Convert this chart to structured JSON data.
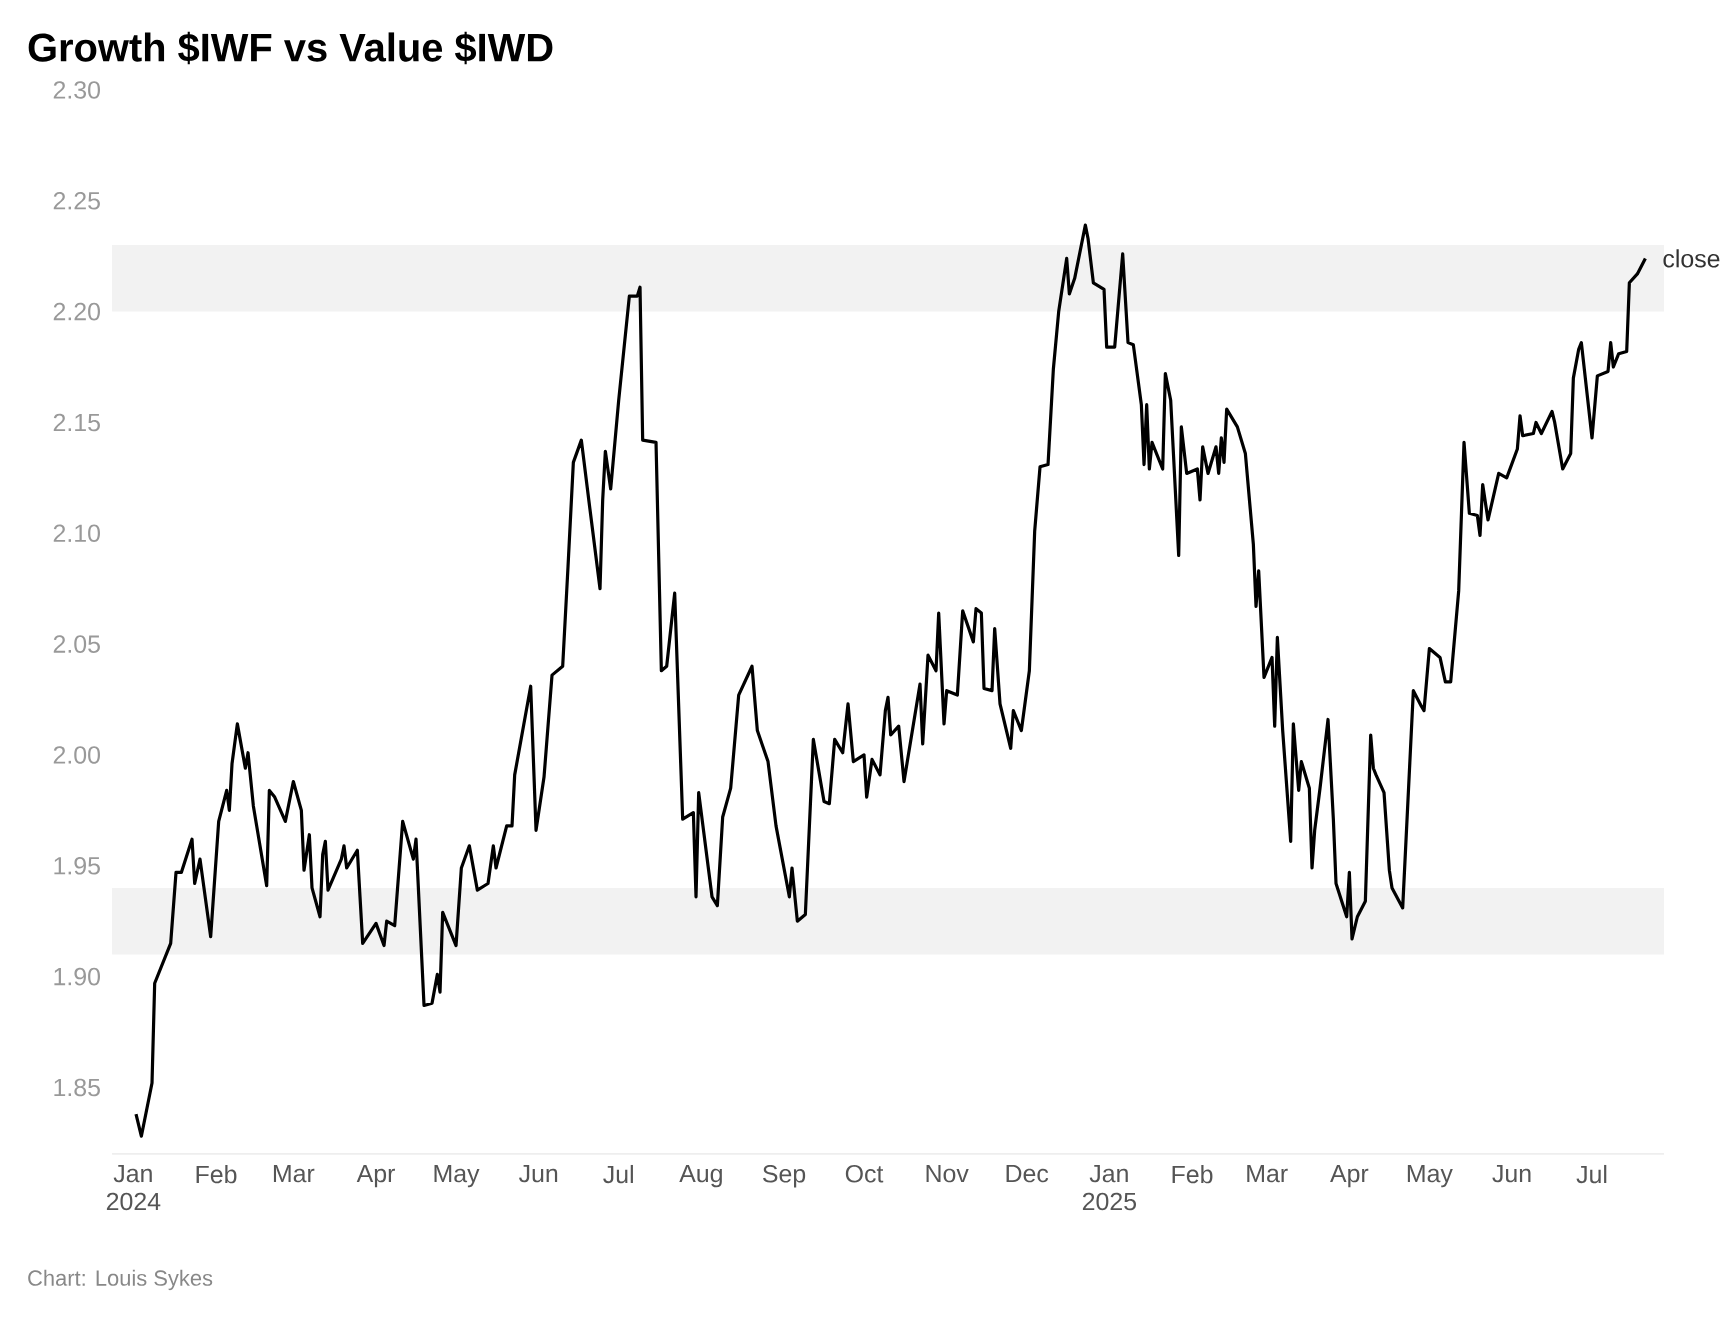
{
  "chart_data": {
    "type": "line",
    "title": "Growth $IWF vs Value $IWD",
    "annotations": [
      "Chart: Louis Sykes"
    ],
    "xticks": [
      {
        "value": "2024-01-01",
        "label": "Jan 2024"
      },
      {
        "value": "2024-02-01",
        "label": "Feb"
      },
      {
        "value": "2024-03-01",
        "label": "Mar"
      },
      {
        "value": "2024-04-01",
        "label": "Apr"
      },
      {
        "value": "2024-05-01",
        "label": "May"
      },
      {
        "value": "2024-06-01",
        "label": "Jun"
      },
      {
        "value": "2024-07-01",
        "label": "Jul"
      },
      {
        "value": "2024-08-01",
        "label": "Aug"
      },
      {
        "value": "2024-09-01",
        "label": "Sep"
      },
      {
        "value": "2024-10-01",
        "label": "Oct"
      },
      {
        "value": "2024-11-01",
        "label": "Nov"
      },
      {
        "value": "2024-12-01",
        "label": "Dec"
      },
      {
        "value": "2025-01-01",
        "label": "Jan 2025"
      },
      {
        "value": "2025-02-01",
        "label": "Feb"
      },
      {
        "value": "2025-03-01",
        "label": "Mar"
      },
      {
        "value": "2025-04-01",
        "label": "Apr"
      },
      {
        "value": "2025-05-01",
        "label": "May"
      },
      {
        "value": "2025-06-01",
        "label": "Jun"
      },
      {
        "value": "2025-07-01",
        "label": "Jul"
      }
    ],
    "xlim": [
      "2023-12-24",
      "2025-07-28"
    ],
    "ylim": [
      1.82,
      2.3
    ],
    "yticks": [
      1.85,
      {
        "value": 1.9,
        "label": "1.90"
      },
      1.95,
      {
        "value": 2.0,
        "label": "2.00"
      },
      2.05,
      {
        "value": 2.1,
        "label": "2.10"
      },
      2.15,
      {
        "value": 2.2,
        "label": "2.20"
      },
      2.25,
      {
        "value": 2.3,
        "label": "2.30"
      }
    ],
    "bands": [
      {
        "axis": "y",
        "from": 2.2,
        "to": 2.23,
        "color": "#f2f2f2"
      },
      {
        "axis": "y",
        "from": 1.91,
        "to": 1.94,
        "color": "#f2f2f2"
      }
    ],
    "x": [
      "2024-01-02",
      "2024-01-04",
      "2024-01-08",
      "2024-01-09",
      "2024-01-15",
      "2024-01-17",
      "2024-01-19",
      "2024-01-23",
      "2024-01-24",
      "2024-01-26",
      "2024-01-30",
      "2024-02-02",
      "2024-02-05",
      "2024-02-06",
      "2024-02-07",
      "2024-02-09",
      "2024-02-12",
      "2024-02-13",
      "2024-02-15",
      "2024-02-20",
      "2024-02-21",
      "2024-02-23",
      "2024-02-27",
      "2024-03-01",
      "2024-03-04",
      "2024-03-05",
      "2024-03-07",
      "2024-03-08",
      "2024-03-11",
      "2024-03-12",
      "2024-03-13",
      "2024-03-14",
      "2024-03-19",
      "2024-03-20",
      "2024-03-21",
      "2024-03-25",
      "2024-03-26",
      "2024-03-27",
      "2024-04-01",
      "2024-04-04",
      "2024-04-05",
      "2024-04-08",
      "2024-04-11",
      "2024-04-15",
      "2024-04-16",
      "2024-04-19",
      "2024-04-22",
      "2024-04-24",
      "2024-04-25",
      "2024-04-26",
      "2024-05-01",
      "2024-05-03",
      "2024-05-06",
      "2024-05-09",
      "2024-05-13",
      "2024-05-15",
      "2024-05-16",
      "2024-05-20",
      "2024-05-22",
      "2024-05-23",
      "2024-05-29",
      "2024-05-31",
      "2024-06-03",
      "2024-06-06",
      "2024-06-10",
      "2024-06-12",
      "2024-06-14",
      "2024-06-17",
      "2024-06-20",
      "2024-06-24",
      "2024-06-25",
      "2024-06-26",
      "2024-06-28",
      "2024-07-01",
      "2024-07-05",
      "2024-07-08",
      "2024-07-09",
      "2024-07-10",
      "2024-07-15",
      "2024-07-17",
      "2024-07-19",
      "2024-07-22",
      "2024-07-25",
      "2024-07-29",
      "2024-07-30",
      "2024-07-31",
      "2024-08-05",
      "2024-08-07",
      "2024-08-09",
      "2024-08-12",
      "2024-08-14",
      "2024-08-15",
      "2024-08-20",
      "2024-08-22",
      "2024-08-26",
      "2024-08-29",
      "2024-09-03",
      "2024-09-04",
      "2024-09-06",
      "2024-09-09",
      "2024-09-12",
      "2024-09-16",
      "2024-09-18",
      "2024-09-20",
      "2024-09-23",
      "2024-09-25",
      "2024-09-27",
      "2024-10-01",
      "2024-10-02",
      "2024-10-04",
      "2024-10-07",
      "2024-10-09",
      "2024-10-10",
      "2024-10-11",
      "2024-10-14",
      "2024-10-16",
      "2024-10-22",
      "2024-10-23",
      "2024-10-25",
      "2024-10-28",
      "2024-10-29",
      "2024-10-31",
      "2024-11-01",
      "2024-11-05",
      "2024-11-07",
      "2024-11-11",
      "2024-11-12",
      "2024-11-14",
      "2024-11-15",
      "2024-11-18",
      "2024-11-19",
      "2024-11-21",
      "2024-11-25",
      "2024-11-26",
      "2024-11-29",
      "2024-12-02",
      "2024-12-04",
      "2024-12-06",
      "2024-12-09",
      "2024-12-11",
      "2024-12-13",
      "2024-12-16",
      "2024-12-17",
      "2024-12-19",
      "2024-12-23",
      "2024-12-24",
      "2024-12-26",
      "2024-12-30",
      "2024-12-31",
      "2025-01-03",
      "2025-01-06",
      "2025-01-08",
      "2025-01-10",
      "2025-01-13",
      "2025-01-14",
      "2025-01-15",
      "2025-01-16",
      "2025-01-17",
      "2025-01-21",
      "2025-01-22",
      "2025-01-24",
      "2025-01-27",
      "2025-01-28",
      "2025-01-30",
      "2025-02-03",
      "2025-02-04",
      "2025-02-05",
      "2025-02-07",
      "2025-02-10",
      "2025-02-11",
      "2025-02-12",
      "2025-02-13",
      "2025-02-14",
      "2025-02-18",
      "2025-02-21",
      "2025-02-24",
      "2025-02-25",
      "2025-02-26",
      "2025-02-28",
      "2025-03-03",
      "2025-03-04",
      "2025-03-05",
      "2025-03-07",
      "2025-03-10",
      "2025-03-11",
      "2025-03-13",
      "2025-03-14",
      "2025-03-17",
      "2025-03-18",
      "2025-03-19",
      "2025-03-21",
      "2025-03-24",
      "2025-03-26",
      "2025-03-27",
      "2025-03-31",
      "2025-04-01",
      "2025-04-02",
      "2025-04-04",
      "2025-04-07",
      "2025-04-09",
      "2025-04-10",
      "2025-04-11",
      "2025-04-14",
      "2025-04-16",
      "2025-04-17",
      "2025-04-21",
      "2025-04-25",
      "2025-04-28",
      "2025-04-29",
      "2025-05-01",
      "2025-05-05",
      "2025-05-07",
      "2025-05-09",
      "2025-05-12",
      "2025-05-14",
      "2025-05-16",
      "2025-05-19",
      "2025-05-20",
      "2025-05-21",
      "2025-05-23",
      "2025-05-27",
      "2025-05-30",
      "2025-06-03",
      "2025-06-04",
      "2025-06-05",
      "2025-06-09",
      "2025-06-10",
      "2025-06-12",
      "2025-06-16",
      "2025-06-17",
      "2025-06-20",
      "2025-06-23",
      "2025-06-24",
      "2025-06-26",
      "2025-06-27",
      "2025-07-01",
      "2025-07-03",
      "2025-07-07",
      "2025-07-08",
      "2025-07-09",
      "2025-07-11",
      "2025-07-14",
      "2025-07-15",
      "2025-07-18",
      "2025-07-21"
    ],
    "series": [
      {
        "name": "close",
        "color": "#000000",
        "values": [
          1.838,
          1.828,
          1.852,
          1.897,
          1.915,
          1.947,
          1.947,
          1.962,
          1.942,
          1.953,
          1.918,
          1.97,
          1.984,
          1.975,
          1.996,
          2.014,
          1.994,
          2.001,
          1.977,
          1.941,
          1.984,
          1.981,
          1.97,
          1.988,
          1.975,
          1.948,
          1.964,
          1.94,
          1.927,
          1.955,
          1.961,
          1.939,
          1.953,
          1.959,
          1.949,
          1.957,
          1.936,
          1.915,
          1.924,
          1.914,
          1.925,
          1.923,
          1.97,
          1.953,
          1.962,
          1.887,
          1.888,
          1.901,
          1.893,
          1.929,
          1.914,
          1.949,
          1.959,
          1.939,
          1.942,
          1.959,
          1.949,
          1.968,
          1.968,
          1.991,
          2.031,
          1.966,
          1.99,
          2.036,
          2.04,
          2.085,
          2.132,
          2.142,
          2.113,
          2.075,
          2.115,
          2.137,
          2.12,
          2.16,
          2.207,
          2.207,
          2.211,
          2.142,
          2.141,
          2.038,
          2.04,
          2.073,
          1.971,
          1.974,
          1.936,
          1.983,
          1.936,
          1.932,
          1.972,
          1.985,
          2.013,
          2.027,
          2.04,
          2.011,
          1.997,
          1.968,
          1.936,
          1.949,
          1.925,
          1.928,
          2.007,
          1.979,
          1.978,
          2.007,
          2.001,
          2.023,
          1.997,
          2.0,
          1.981,
          1.998,
          1.991,
          2.02,
          2.026,
          2.009,
          2.013,
          1.988,
          2.032,
          2.005,
          2.045,
          2.038,
          2.064,
          2.014,
          2.029,
          2.027,
          2.065,
          2.051,
          2.066,
          2.064,
          2.03,
          2.029,
          2.057,
          2.023,
          2.003,
          2.02,
          2.011,
          2.038,
          2.101,
          2.13,
          2.131,
          2.174,
          2.2,
          2.224,
          2.208,
          2.215,
          2.239,
          2.233,
          2.213,
          2.21,
          2.184,
          2.184,
          2.226,
          2.186,
          2.185,
          2.158,
          2.131,
          2.158,
          2.129,
          2.141,
          2.129,
          2.172,
          2.16,
          2.09,
          2.148,
          2.127,
          2.129,
          2.115,
          2.139,
          2.127,
          2.139,
          2.127,
          2.143,
          2.132,
          2.156,
          2.148,
          2.136,
          2.095,
          2.067,
          2.083,
          2.035,
          2.044,
          2.013,
          2.053,
          2.011,
          1.961,
          2.014,
          1.984,
          1.997,
          1.985,
          1.949,
          1.966,
          1.985,
          2.016,
          1.971,
          1.942,
          1.927,
          1.947,
          1.917,
          1.927,
          1.934,
          2.009,
          1.994,
          1.991,
          1.983,
          1.948,
          1.94,
          1.931,
          2.029,
          2.022,
          2.02,
          2.048,
          2.044,
          2.033,
          2.033,
          2.074,
          2.141,
          2.109,
          2.108,
          2.099,
          2.122,
          2.106,
          2.127,
          2.125,
          2.138,
          2.153,
          2.144,
          2.145,
          2.15,
          2.145,
          2.155,
          2.15,
          2.129,
          2.136,
          2.17,
          2.183,
          2.186,
          2.143,
          2.171,
          2.173,
          2.186,
          2.175,
          2.181,
          2.182,
          2.213,
          2.217,
          2.224
        ]
      }
    ]
  }
}
